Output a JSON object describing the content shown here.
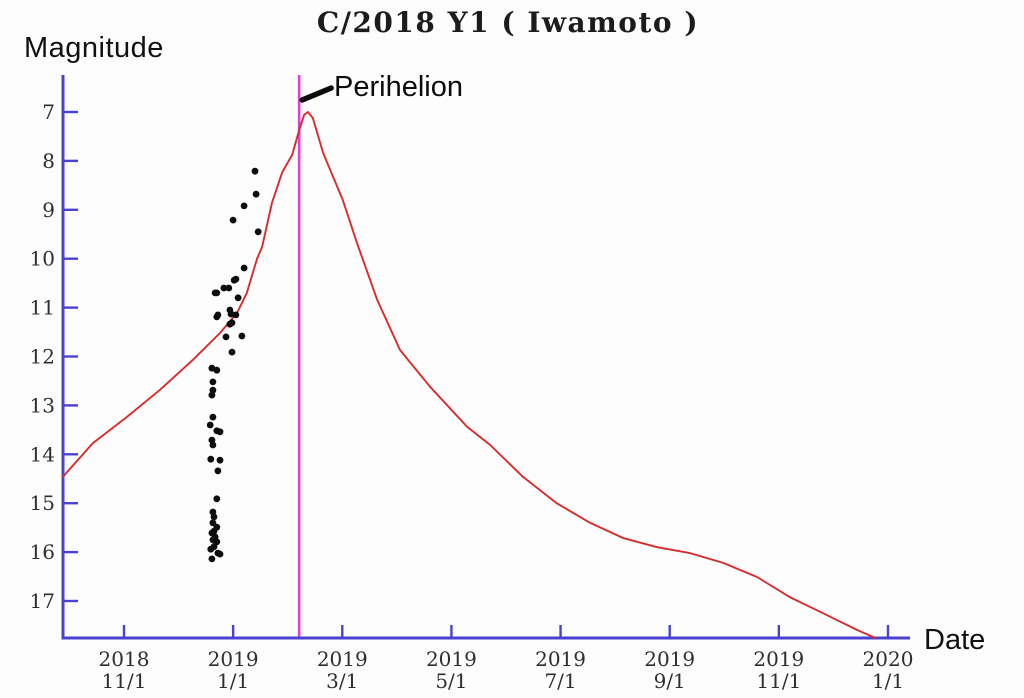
{
  "title": "C/2018 Y1 ( Iwamoto )",
  "labels": {
    "y_axis": "Magnitude",
    "x_axis": "Date",
    "perihelion": "Perihelion"
  },
  "colors": {
    "axis": "#4a41cf",
    "curve": "#d92b2b",
    "observations": "#0d0d0d",
    "perihelion_line": "#e03fd8",
    "annotation": "#0c0c0c"
  },
  "chart_data": {
    "type": "line+scatter",
    "title": "C/2018 Y1 ( Iwamoto )",
    "xlabel": "Date",
    "ylabel": "Magnitude",
    "x_unit": "months since 2018-11-01",
    "y_inverted": true,
    "ylim": [
      6.3,
      17.9
    ],
    "xlim": [
      -1.12,
      14.4
    ],
    "grid": false,
    "y_ticks": [
      7,
      8,
      9,
      10,
      11,
      12,
      13,
      14,
      15,
      16,
      17
    ],
    "x_ticks": [
      {
        "m": 0,
        "year": "2018",
        "day": "11/1"
      },
      {
        "m": 2,
        "year": "2019",
        "day": "1/1"
      },
      {
        "m": 4,
        "year": "2019",
        "day": "3/1"
      },
      {
        "m": 6,
        "year": "2019",
        "day": "5/1"
      },
      {
        "m": 8,
        "year": "2019",
        "day": "7/1"
      },
      {
        "m": 10,
        "year": "2019",
        "day": "9/1"
      },
      {
        "m": 12,
        "year": "2019",
        "day": "11/1"
      },
      {
        "m": 14,
        "year": "2020",
        "day": "1/1"
      }
    ],
    "perihelion": {
      "x": 3.21,
      "label": "Perihelion"
    },
    "series": [
      {
        "name": "predicted-light-curve",
        "type": "line",
        "color": "#d92b2b",
        "points": [
          [
            -1.12,
            14.46
          ],
          [
            -0.57,
            13.77
          ],
          [
            0.05,
            13.24
          ],
          [
            0.66,
            12.68
          ],
          [
            1.26,
            12.07
          ],
          [
            1.76,
            11.52
          ],
          [
            2.07,
            11.11
          ],
          [
            2.25,
            10.7
          ],
          [
            2.44,
            9.99
          ],
          [
            2.53,
            9.76
          ],
          [
            2.71,
            8.86
          ],
          [
            2.9,
            8.23
          ],
          [
            3.08,
            7.88
          ],
          [
            3.21,
            7.37
          ],
          [
            3.3,
            7.06
          ],
          [
            3.37,
            7.0
          ],
          [
            3.46,
            7.12
          ],
          [
            3.65,
            7.84
          ],
          [
            4.01,
            8.8
          ],
          [
            4.27,
            9.68
          ],
          [
            4.64,
            10.84
          ],
          [
            5.06,
            11.87
          ],
          [
            5.61,
            12.62
          ],
          [
            6.29,
            13.44
          ],
          [
            6.71,
            13.81
          ],
          [
            7.31,
            14.46
          ],
          [
            7.93,
            15.0
          ],
          [
            8.54,
            15.4
          ],
          [
            9.14,
            15.71
          ],
          [
            9.77,
            15.9
          ],
          [
            10.37,
            16.02
          ],
          [
            10.98,
            16.22
          ],
          [
            11.6,
            16.51
          ],
          [
            12.2,
            16.92
          ],
          [
            12.81,
            17.25
          ],
          [
            13.43,
            17.59
          ],
          [
            13.76,
            17.75
          ]
        ]
      },
      {
        "name": "observations",
        "type": "scatter",
        "color": "#0d0d0d",
        "points": [
          [
            2.4,
            8.21
          ],
          [
            2.42,
            8.68
          ],
          [
            2.2,
            8.92
          ],
          [
            2.0,
            9.21
          ],
          [
            2.46,
            9.45
          ],
          [
            2.2,
            10.19
          ],
          [
            2.05,
            10.42
          ],
          [
            2.02,
            10.44
          ],
          [
            1.83,
            10.6
          ],
          [
            1.92,
            10.6
          ],
          [
            1.67,
            10.7
          ],
          [
            1.7,
            10.7
          ],
          [
            2.09,
            10.8
          ],
          [
            1.94,
            11.05
          ],
          [
            1.96,
            11.13
          ],
          [
            2.05,
            11.15
          ],
          [
            1.72,
            11.15
          ],
          [
            1.7,
            11.19
          ],
          [
            1.98,
            11.31
          ],
          [
            1.94,
            11.34
          ],
          [
            2.16,
            11.58
          ],
          [
            1.87,
            11.6
          ],
          [
            1.98,
            11.91
          ],
          [
            1.61,
            12.24
          ],
          [
            1.7,
            12.28
          ],
          [
            1.63,
            12.52
          ],
          [
            1.63,
            12.69
          ],
          [
            1.61,
            12.79
          ],
          [
            1.63,
            13.24
          ],
          [
            1.58,
            13.4
          ],
          [
            1.7,
            13.52
          ],
          [
            1.76,
            13.54
          ],
          [
            1.61,
            13.71
          ],
          [
            1.63,
            13.81
          ],
          [
            1.59,
            14.1
          ],
          [
            1.76,
            14.12
          ],
          [
            1.72,
            14.34
          ],
          [
            1.7,
            14.91
          ],
          [
            1.63,
            15.18
          ],
          [
            1.65,
            15.28
          ],
          [
            1.63,
            15.4
          ],
          [
            1.7,
            15.49
          ],
          [
            1.65,
            15.57
          ],
          [
            1.61,
            15.61
          ],
          [
            1.67,
            15.69
          ],
          [
            1.63,
            15.75
          ],
          [
            1.7,
            15.79
          ],
          [
            1.65,
            15.89
          ],
          [
            1.59,
            15.94
          ],
          [
            1.72,
            16.02
          ],
          [
            1.76,
            16.04
          ],
          [
            1.61,
            16.14
          ]
        ]
      }
    ]
  }
}
